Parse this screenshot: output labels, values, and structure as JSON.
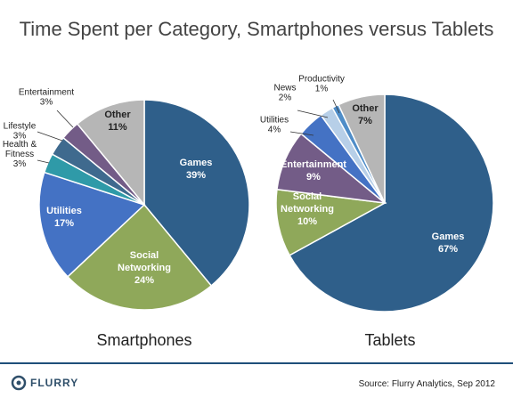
{
  "page": {
    "title": "Time Spent per Category, Smartphones versus Tablets",
    "source": "Source: Flurry Analytics, Sep 2012",
    "logo_text": "FLURRY"
  },
  "colors": {
    "games": "#2f5f8a",
    "social": "#8fa85a",
    "utilities": "#4472c4",
    "health_fitness": "#2f9aa8",
    "lifestyle": "#3f6a8e",
    "entertainment": "#735c87",
    "other": "#b6b6b6",
    "news": "#b7cfe8",
    "productivity": "#4f8dc8",
    "divider": "#1f4f7a"
  },
  "chart_data": [
    {
      "type": "pie",
      "title": "Smartphones",
      "categories": [
        "Games",
        "Social Networking",
        "Utilities",
        "Health & Fitness",
        "Lifestyle",
        "Entertainment",
        "Other"
      ],
      "values": [
        39,
        24,
        17,
        3,
        3,
        3,
        11
      ],
      "value_labels": [
        "39%",
        "24%",
        "17%",
        "3%",
        "3%",
        "3%",
        "11%"
      ]
    },
    {
      "type": "pie",
      "title": "Tablets",
      "categories": [
        "Games",
        "Social Networking",
        "Entertainment",
        "Utilities",
        "News",
        "Productivity",
        "Other"
      ],
      "values": [
        67,
        10,
        9,
        4,
        2,
        1,
        7
      ],
      "value_labels": [
        "67%",
        "10%",
        "9%",
        "4%",
        "2%",
        "1%",
        "7%"
      ]
    }
  ]
}
